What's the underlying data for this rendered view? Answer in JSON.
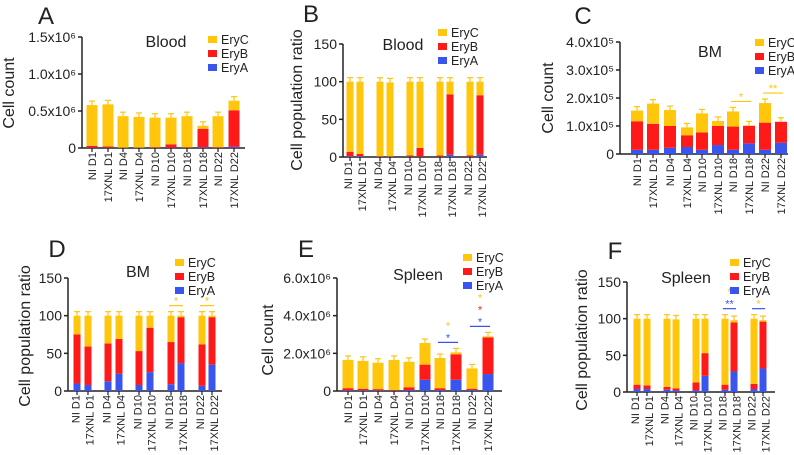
{
  "colors": {
    "EryC": "#FFC60B",
    "EryB": "#FF1A1A",
    "EryA": "#3A55EE"
  },
  "chart_data": [
    {
      "panel": "A",
      "type": "bar",
      "stacked": true,
      "title": "Blood",
      "ylabel": "Cell count",
      "ylim": [
        0,
        1500000
      ],
      "yticks": [
        0,
        500000,
        1000000,
        1500000
      ],
      "ytick_labels": [
        "0",
        "0.5x10⁶",
        "1.0x10⁶",
        "1.5x10⁶"
      ],
      "legend": [
        "EryC",
        "EryB",
        "EryA"
      ],
      "legend_placement": "top-right",
      "categories": [
        "NI D1",
        "17XNL D1",
        "NI D4",
        "17XNL D4",
        "NI D10",
        "17XNL D10",
        "NI D18",
        "17XNL D18",
        "NI D22",
        "17XNL D22"
      ],
      "series": [
        {
          "name": "EryA",
          "values": [
            5000,
            5000,
            3000,
            3000,
            3000,
            5000,
            3000,
            10000,
            3000,
            15000
          ]
        },
        {
          "name": "EryB",
          "values": [
            25000,
            15000,
            2000,
            2000,
            7000,
            45000,
            7000,
            250000,
            7000,
            495000
          ]
        },
        {
          "name": "EryC",
          "values": [
            550000,
            570000,
            425000,
            415000,
            400000,
            360000,
            420000,
            40000,
            420000,
            130000
          ]
        }
      ],
      "significance": []
    },
    {
      "panel": "B",
      "type": "bar",
      "stacked": true,
      "title": "Blood",
      "ylabel": "Cell population ratio",
      "ylim": [
        0,
        150
      ],
      "yticks": [
        0,
        50,
        100,
        150
      ],
      "ytick_labels": [
        "0",
        "50",
        "100",
        "150"
      ],
      "legend": [
        "EryC",
        "EryB",
        "EryA"
      ],
      "legend_placement": "top-right",
      "categories": [
        "NI D1",
        "17XNL D1",
        "NI D4",
        "17XNL D4",
        "NI D10",
        "17XNL D10",
        "NI D18",
        "17XNL D18",
        "NI D22",
        "17XNL D22"
      ],
      "series": [
        {
          "name": "EryA",
          "values": [
            1,
            1,
            0.5,
            0.5,
            0.5,
            0.5,
            0.5,
            3,
            0.5,
            3
          ]
        },
        {
          "name": "EryB",
          "values": [
            6,
            3,
            0.5,
            0.5,
            1.5,
            11.5,
            1.5,
            80,
            1.5,
            79
          ]
        },
        {
          "name": "EryC",
          "values": [
            93,
            96,
            99,
            98,
            98,
            88,
            98,
            17,
            98,
            18
          ]
        }
      ],
      "significance": []
    },
    {
      "panel": "C",
      "type": "bar",
      "stacked": true,
      "title": "BM",
      "ylabel": "Cell count",
      "ylim": [
        0,
        400000
      ],
      "yticks": [
        0,
        100000,
        200000,
        300000,
        400000
      ],
      "ytick_labels": [
        "0",
        "1.0x10⁵",
        "2.0x10⁵",
        "3.0x10⁵",
        "4.0x10⁵"
      ],
      "legend": [
        "EryC",
        "EryB",
        "EryA"
      ],
      "legend_placement": "top-right",
      "categories": [
        "NI D1",
        "17XNL D1",
        "NI D4",
        "17XNL D4",
        "NI D10",
        "17XNL D10",
        "NI D18",
        "17XNL D18",
        "NI D22",
        "17XNL D22"
      ],
      "series": [
        {
          "name": "EryA",
          "values": [
            15000,
            15000,
            22000,
            25000,
            15000,
            32000,
            15000,
            38000,
            15000,
            40000
          ]
        },
        {
          "name": "EryB",
          "values": [
            102000,
            93000,
            78000,
            42000,
            62000,
            68000,
            83000,
            62000,
            97000,
            75000
          ]
        },
        {
          "name": "EryC",
          "values": [
            38000,
            72000,
            57000,
            28000,
            68000,
            18000,
            54000,
            2000,
            70000,
            0
          ]
        }
      ],
      "significance": [
        {
          "bars": [
            6,
            7
          ],
          "line_color": "EryC",
          "marks": [
            {
              "text": "*",
              "color": "EryC"
            }
          ]
        },
        {
          "bars": [
            8,
            9
          ],
          "line_color": "EryC",
          "marks": [
            {
              "text": "**",
              "color": "EryC"
            }
          ]
        }
      ]
    },
    {
      "panel": "D",
      "type": "bar",
      "stacked": true,
      "title": "BM",
      "ylabel": "Cell population ratio",
      "ylim": [
        0,
        150
      ],
      "yticks": [
        0,
        50,
        100,
        150
      ],
      "ytick_labels": [
        "0",
        "50",
        "100",
        "150"
      ],
      "legend": [
        "EryC",
        "EryB",
        "EryA"
      ],
      "legend_placement": "top-right",
      "categories": [
        "NI D1",
        "17XNL D1",
        "NI D4",
        "17XNL D4",
        "NI D10",
        "17XNL D10",
        "NI D18",
        "17XNL D18",
        "NI D22",
        "17XNL D22"
      ],
      "series": [
        {
          "name": "EryA",
          "values": [
            10,
            8,
            13,
            23,
            8,
            25,
            9,
            37,
            7,
            35
          ]
        },
        {
          "name": "EryB",
          "values": [
            65,
            51,
            50,
            46,
            45,
            59,
            56,
            61,
            55,
            63
          ]
        },
        {
          "name": "EryC",
          "values": [
            25,
            41,
            37,
            31,
            47,
            16,
            35,
            2,
            38,
            2
          ]
        }
      ],
      "significance": [
        {
          "bars": [
            6,
            7
          ],
          "line_color": "EryC",
          "marks": [
            {
              "text": "*",
              "color": "EryC"
            }
          ]
        },
        {
          "bars": [
            8,
            9
          ],
          "line_color": "EryC",
          "marks": [
            {
              "text": "*",
              "color": "EryC"
            }
          ]
        }
      ]
    },
    {
      "panel": "E",
      "type": "bar",
      "stacked": true,
      "title": "Spleen",
      "ylabel": "Cell count",
      "ylim": [
        0,
        6000000
      ],
      "yticks": [
        0,
        2000000,
        4000000,
        6000000
      ],
      "ytick_labels": [
        "0",
        "2.0x10⁶",
        "4.0x10⁶",
        "6.0x10⁶"
      ],
      "legend": [
        "EryC",
        "EryB",
        "EryA"
      ],
      "legend_placement": "top-right",
      "categories": [
        "NI D1",
        "17XNL D1",
        "NI D4",
        "17XNL D4",
        "NI D10",
        "17XNL D10",
        "NI D18",
        "17XNL D18",
        "NI D22",
        "17XNL D22"
      ],
      "series": [
        {
          "name": "EryA",
          "values": [
            30000,
            30000,
            30000,
            20000,
            50000,
            600000,
            50000,
            600000,
            50000,
            900000
          ]
        },
        {
          "name": "EryB",
          "values": [
            120000,
            90000,
            70000,
            30000,
            150000,
            800000,
            100000,
            1350000,
            70000,
            1950000
          ]
        },
        {
          "name": "EryC",
          "values": [
            1500000,
            1480000,
            1400000,
            1600000,
            1350000,
            1150000,
            1600000,
            100000,
            1080000,
            50000
          ]
        }
      ],
      "significance": [
        {
          "bars": [
            6,
            7
          ],
          "line_color": "EryA",
          "marks": [
            {
              "text": "*",
              "color": "EryA"
            },
            {
              "text": "*",
              "color": "EryC"
            }
          ]
        },
        {
          "bars": [
            8,
            9
          ],
          "line_color": "EryA",
          "marks": [
            {
              "text": "*",
              "color": "EryA"
            },
            {
              "text": "*",
              "color": "EryB"
            },
            {
              "text": "*",
              "color": "EryC"
            }
          ]
        }
      ]
    },
    {
      "panel": "F",
      "type": "bar",
      "stacked": true,
      "title": "Spleen",
      "ylabel": "Cell population ratio",
      "ylim": [
        0,
        150
      ],
      "yticks": [
        0,
        50,
        100,
        150
      ],
      "ytick_labels": [
        "0",
        "50",
        "100",
        "150"
      ],
      "legend": [
        "EryC",
        "EryB",
        "EryA"
      ],
      "legend_placement": "top-right",
      "categories": [
        "NI D1",
        "17XNL D1",
        "NI D4",
        "17XNL D4",
        "NI D10",
        "17XNL D10",
        "NI D18",
        "17XNL D18",
        "NI D22",
        "17XNL D22"
      ],
      "series": [
        {
          "name": "EryA",
          "values": [
            4,
            4,
            3,
            2,
            2,
            22,
            3,
            28,
            4,
            32
          ]
        },
        {
          "name": "EryB",
          "values": [
            6,
            5,
            4,
            3,
            11,
            31,
            7,
            67,
            7,
            64
          ]
        },
        {
          "name": "EryC",
          "values": [
            90,
            91,
            93,
            94,
            87,
            47,
            90,
            3,
            89,
            2
          ]
        }
      ],
      "significance": [
        {
          "bars": [
            6,
            7
          ],
          "line_color": "EryA",
          "marks": [
            {
              "text": "**",
              "color": "EryA"
            },
            {
              "text": "*",
              "color": "EryC"
            }
          ]
        },
        {
          "bars": [
            8,
            9
          ],
          "line_color": "EryA",
          "marks": [
            {
              "text": "*",
              "color": "EryC"
            }
          ]
        }
      ]
    }
  ]
}
